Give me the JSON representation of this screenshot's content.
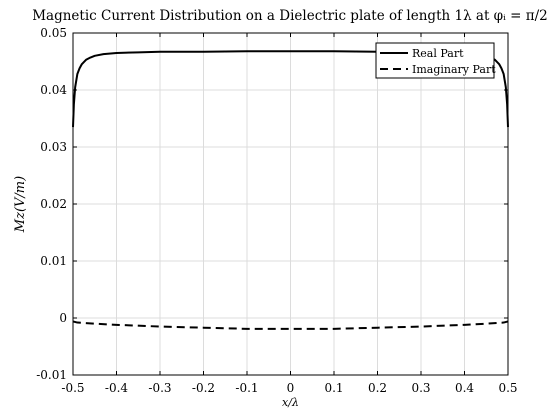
{
  "chart_data": {
    "type": "line",
    "title": "Magnetic Current Distribution on a Dielectric plate of length 1λ at φᵢ = π/2",
    "xlabel": "x/λ",
    "ylabel": "Mz(V/m)",
    "xlim": [
      -0.5,
      0.5
    ],
    "ylim": [
      -0.01,
      0.05
    ],
    "xticks": [
      -0.5,
      -0.4,
      -0.3,
      -0.2,
      -0.1,
      0,
      0.1,
      0.2,
      0.3,
      0.4,
      0.5
    ],
    "xtick_labels": [
      "-0.5",
      "-0.4",
      "-0.3",
      "-0.2",
      "-0.1",
      "0",
      "0.1",
      "0.2",
      "0.3",
      "0.4",
      "0.5"
    ],
    "yticks": [
      -0.01,
      0,
      0.01,
      0.02,
      0.03,
      0.04,
      0.05
    ],
    "ytick_labels": [
      "-0.01",
      "0",
      "0.01",
      "0.02",
      "0.03",
      "0.04",
      "0.05"
    ],
    "grid": true,
    "legend_position": "top-right",
    "series": [
      {
        "name": "Real Part",
        "style": "solid",
        "color": "#000000",
        "x": [
          -0.5,
          -0.498,
          -0.495,
          -0.49,
          -0.485,
          -0.48,
          -0.47,
          -0.46,
          -0.45,
          -0.43,
          -0.4,
          -0.35,
          -0.3,
          -0.2,
          -0.1,
          0,
          0.1,
          0.2,
          0.3,
          0.35,
          0.4,
          0.43,
          0.45,
          0.46,
          0.47,
          0.48,
          0.485,
          0.49,
          0.495,
          0.498,
          0.5
        ],
        "y": [
          0.0335,
          0.0375,
          0.0405,
          0.0428,
          0.0438,
          0.0445,
          0.0453,
          0.0457,
          0.046,
          0.0463,
          0.0465,
          0.0466,
          0.0467,
          0.0467,
          0.0468,
          0.0468,
          0.0468,
          0.0467,
          0.0467,
          0.0466,
          0.0465,
          0.0463,
          0.046,
          0.0457,
          0.0453,
          0.0445,
          0.0438,
          0.0428,
          0.0405,
          0.0375,
          0.0335
        ]
      },
      {
        "name": "Imaginary Part",
        "style": "dashed",
        "color": "#000000",
        "x": [
          -0.5,
          -0.49,
          -0.45,
          -0.4,
          -0.3,
          -0.2,
          -0.1,
          0,
          0.1,
          0.2,
          0.3,
          0.4,
          0.45,
          0.49,
          0.5
        ],
        "y": [
          -0.0006,
          -0.0008,
          -0.001,
          -0.0012,
          -0.0015,
          -0.0017,
          -0.0019,
          -0.0019,
          -0.0019,
          -0.0017,
          -0.0015,
          -0.0012,
          -0.001,
          -0.0008,
          -0.0006
        ]
      }
    ]
  }
}
